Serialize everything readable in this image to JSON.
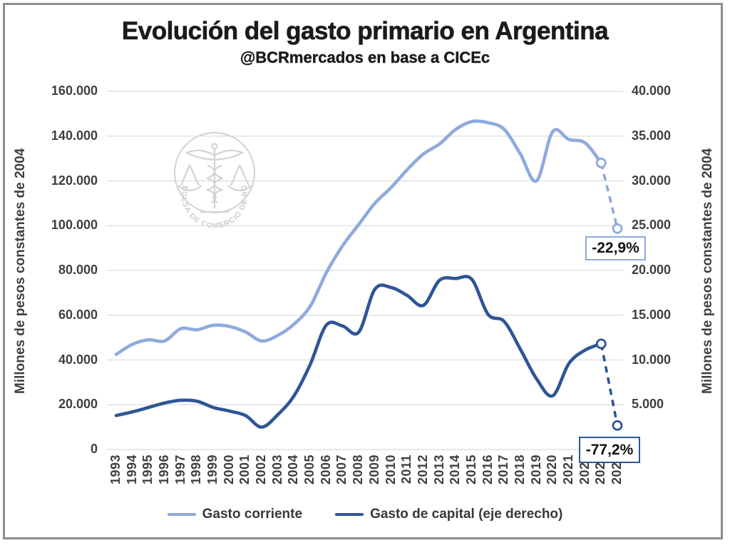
{
  "title": "Evolución del gasto primario en Argentina",
  "subtitle": "@BCRmercados en base a CICEc",
  "watermark": {
    "ring_text": "BOLSA DE COMERCIO DE ROSARIO"
  },
  "axes": {
    "left_title": "Millones de pesos constantes de 2004",
    "right_title": "Millones de pesos constantes de 2004",
    "left_ticks": [
      {
        "value": 0,
        "label": "0"
      },
      {
        "value": 20000,
        "label": "20.000"
      },
      {
        "value": 40000,
        "label": "40.000"
      },
      {
        "value": 60000,
        "label": "60.000"
      },
      {
        "value": 80000,
        "label": "80.000"
      },
      {
        "value": 100000,
        "label": "100.000"
      },
      {
        "value": 120000,
        "label": "120.000"
      },
      {
        "value": 140000,
        "label": "140.000"
      },
      {
        "value": 160000,
        "label": "160.000"
      }
    ],
    "right_ticks": [
      {
        "value": 0,
        "label": "0"
      },
      {
        "value": 5000,
        "label": "5.000"
      },
      {
        "value": 10000,
        "label": "10.000"
      },
      {
        "value": 15000,
        "label": "15.000"
      },
      {
        "value": 20000,
        "label": "20.000"
      },
      {
        "value": 25000,
        "label": "25.000"
      },
      {
        "value": 30000,
        "label": "30.000"
      },
      {
        "value": 35000,
        "label": "35.000"
      },
      {
        "value": 40000,
        "label": "40.000"
      }
    ],
    "years": [
      "1993",
      "1994",
      "1995",
      "1996",
      "1997",
      "1998",
      "1999",
      "2000",
      "2001",
      "2002",
      "2003",
      "2004",
      "2005",
      "2006",
      "2007",
      "2008",
      "2009",
      "2010",
      "2011",
      "2012",
      "2013",
      "2014",
      "2015",
      "2016",
      "2017",
      "2018",
      "2019",
      "2020",
      "2021",
      "2022",
      "2023",
      "2024"
    ]
  },
  "legend": {
    "items": [
      {
        "label": "Gasto corriente",
        "color": "#8FAADC"
      },
      {
        "label": "Gasto de capital (eje derecho)",
        "color": "#2F5597"
      }
    ]
  },
  "annotations": [
    {
      "text": "-22,9%",
      "color": "#8FAADC"
    },
    {
      "text": "-77,2%",
      "color": "#2F5597"
    }
  ],
  "colors": {
    "grid": "#dcdcdc",
    "frame": "#8d8d8d",
    "watermark": "#a9a9a9"
  },
  "chart_data": {
    "type": "line",
    "x": [
      1993,
      1994,
      1995,
      1996,
      1997,
      1998,
      1999,
      2000,
      2001,
      2002,
      2003,
      2004,
      2005,
      2006,
      2007,
      2008,
      2009,
      2010,
      2011,
      2012,
      2013,
      2014,
      2015,
      2016,
      2017,
      2018,
      2019,
      2020,
      2021,
      2022,
      2023,
      2024
    ],
    "series": [
      {
        "name": "Gasto corriente",
        "axis": "left",
        "color": "#8FAADC",
        "values": [
          42500,
          47000,
          49000,
          48500,
          54000,
          53500,
          55500,
          55000,
          52500,
          48500,
          51000,
          56000,
          64000,
          79000,
          91000,
          100500,
          110000,
          117000,
          125000,
          132000,
          136500,
          143000,
          146500,
          146000,
          143000,
          132000,
          120000,
          142000,
          138500,
          137000,
          128000,
          98700
        ],
        "dashed_from_year": 2023,
        "marker_years": [
          2023,
          2024
        ],
        "pct_change_label": "-22,9%"
      },
      {
        "name": "Gasto de capital (eje derecho)",
        "axis": "right",
        "color": "#2F5597",
        "values": [
          3800,
          4200,
          4700,
          5200,
          5500,
          5400,
          4700,
          4300,
          3800,
          2500,
          3900,
          6000,
          9500,
          13900,
          13800,
          13100,
          17900,
          18100,
          17200,
          16100,
          18900,
          19100,
          19000,
          15100,
          14300,
          11200,
          7900,
          6000,
          9600,
          11100,
          11800,
          2690
        ],
        "dashed_from_year": 2023,
        "marker_years": [
          2023,
          2024
        ],
        "pct_change_label": "-77,2%"
      }
    ],
    "left_axis_range": [
      0,
      160000
    ],
    "right_axis_range": [
      0,
      40000
    ],
    "grid": true,
    "legend_position": "bottom"
  }
}
